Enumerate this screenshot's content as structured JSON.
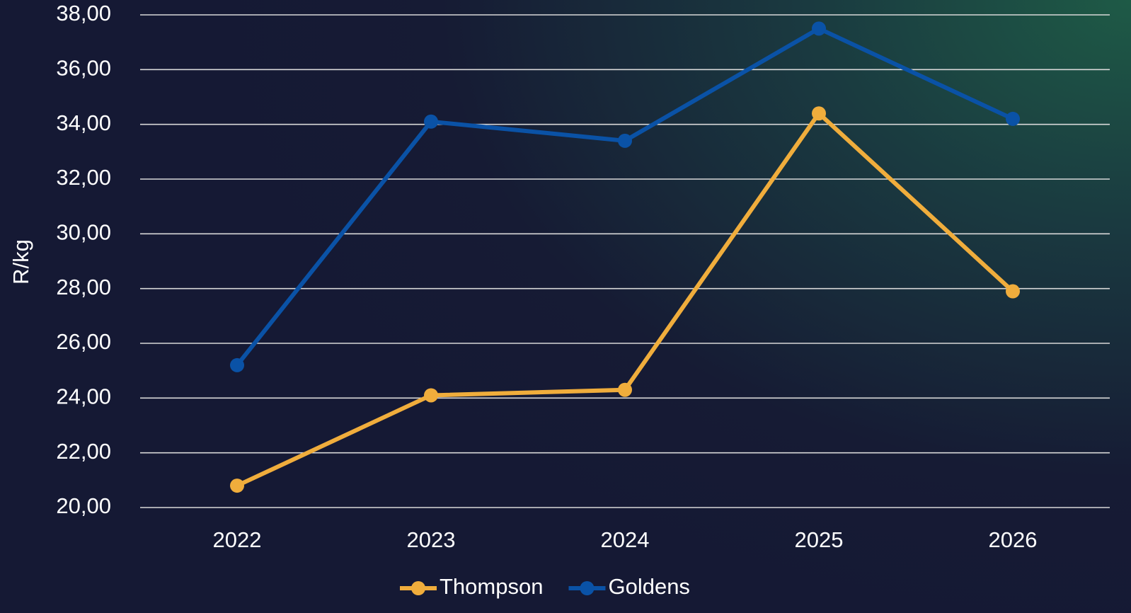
{
  "chart_data": {
    "type": "line",
    "y_label": "R/kg",
    "categories": [
      "2022",
      "2023",
      "2024",
      "2025",
      "2026"
    ],
    "series": [
      {
        "name": "Thompson",
        "color": "#f0ad3c",
        "values": [
          20.8,
          24.1,
          24.3,
          34.4,
          27.9
        ]
      },
      {
        "name": "Goldens",
        "color": "#0a52a6",
        "values": [
          25.2,
          34.1,
          33.4,
          37.5,
          34.2
        ]
      }
    ],
    "ylim": [
      20,
      38
    ],
    "yticks": [
      {
        "value": 20,
        "label": "20,00"
      },
      {
        "value": 22,
        "label": "22,00"
      },
      {
        "value": 24,
        "label": "24,00"
      },
      {
        "value": 26,
        "label": "26,00"
      },
      {
        "value": 28,
        "label": "28,00"
      },
      {
        "value": 30,
        "label": "30,00"
      },
      {
        "value": 32,
        "label": "32,00"
      },
      {
        "value": 34,
        "label": "34,00"
      },
      {
        "value": 36,
        "label": "36,00"
      },
      {
        "value": 38,
        "label": "38,00"
      }
    ],
    "grid": true,
    "legend": "bottom"
  }
}
